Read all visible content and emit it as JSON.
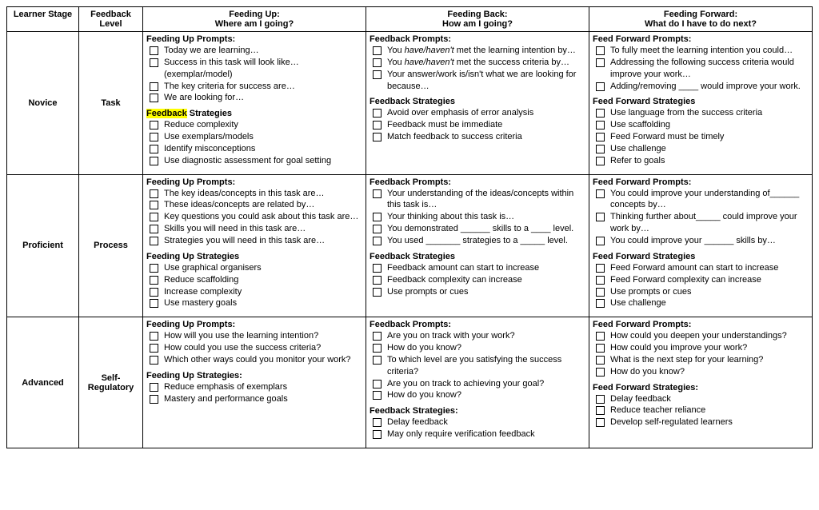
{
  "headers": {
    "stage": "Learner Stage",
    "level": "Feedback Level",
    "up_title": "Feeding Up:",
    "up_sub": "Where am I going?",
    "back_title": "Feeding Back:",
    "back_sub": "How am I going?",
    "fwd_title": "Feeding Forward:",
    "fwd_sub": "What do I have to do next?"
  },
  "rows": [
    {
      "stage": "Novice",
      "level": "Task",
      "up": {
        "prompts_title": "Feeding Up Prompts:",
        "prompts": [
          "Today we are learning…",
          "Success in this task will look like…(exemplar/model)",
          "The key criteria for success are…",
          "We are looking for…"
        ],
        "strat_title_hl": "Feedback",
        "strat_title_rest": " Strategies",
        "strategies": [
          "Reduce complexity",
          "Use exemplars/models",
          "Identify misconceptions",
          "Use diagnostic assessment for goal setting"
        ]
      },
      "back": {
        "prompts_title": "Feedback Prompts:",
        "prompts_html": [
          "You <em>have/haven't</em> met the learning intention by…",
          "You <em>have/haven't</em> met the success criteria by…",
          "Your answer/work is/isn't what we are looking for because…"
        ],
        "strat_title": "Feedback Strategies",
        "strategies": [
          "Avoid over emphasis of error analysis",
          "Feedback must be immediate",
          "Match feedback to success criteria"
        ]
      },
      "fwd": {
        "prompts_title": "Feed Forward Prompts:",
        "prompts": [
          "To fully meet the learning intention you could…",
          "Addressing the following success criteria would improve your work…",
          "Adding/removing ____ would improve your work."
        ],
        "strat_title": "Feed Forward Strategies",
        "strategies": [
          "Use language from the success criteria",
          "Use scaffolding",
          "Feed Forward must be timely",
          "Use challenge",
          "Refer to goals"
        ]
      }
    },
    {
      "stage": "Proficient",
      "level": "Process",
      "up": {
        "prompts_title": "Feeding Up Prompts:",
        "prompts": [
          "The key ideas/concepts in this task are…",
          "These ideas/concepts are related by…",
          "Key questions you could ask about this task are…",
          "Skills you will need in this task are…",
          "Strategies you will need in this task are…"
        ],
        "strat_title": "Feeding Up Strategies",
        "strategies": [
          "Use graphical organisers",
          "Reduce scaffolding",
          "Increase complexity",
          "Use mastery goals"
        ]
      },
      "back": {
        "prompts_title": "Feedback Prompts:",
        "prompts": [
          "Your understanding of the ideas/concepts within this task is…",
          "Your thinking about this task is…",
          "You demonstrated ______ skills to a ____ level.",
          "You used _______ strategies to a _____ level."
        ],
        "strat_title": "Feedback Strategies",
        "strategies": [
          "Feedback amount can start to increase",
          "Feedback complexity can increase",
          "Use prompts or cues"
        ]
      },
      "fwd": {
        "prompts_title": "Feed Forward Prompts:",
        "prompts": [
          "You could improve your understanding of______ concepts by…",
          "Thinking further about_____ could improve your work by…",
          "You could improve your ______ skills by…"
        ],
        "strat_title": "Feed Forward Strategies",
        "strategies": [
          "Feed Forward amount can start to increase",
          "Feed Forward complexity can increase",
          "Use prompts or cues",
          "Use challenge"
        ]
      }
    },
    {
      "stage": "Advanced",
      "level": "Self-Regulatory",
      "up": {
        "prompts_title": "Feeding Up Prompts:",
        "prompts": [
          "How will you use the learning intention?",
          "How could you use the success criteria?",
          "Which other ways could you monitor your work?"
        ],
        "strat_title": "Feeding Up Strategies:",
        "strategies": [
          "Reduce emphasis of exemplars",
          "Mastery and performance goals"
        ]
      },
      "back": {
        "prompts_title": "Feedback Prompts:",
        "prompts": [
          "Are you on track with your work?",
          "How do you know?",
          "To which level are you satisfying the success criteria?",
          "Are you on track to achieving your goal?",
          "How do you know?"
        ],
        "strat_title": "Feedback Strategies:",
        "strategies": [
          "Delay feedback",
          "May only require verification feedback"
        ]
      },
      "fwd": {
        "prompts_title": "Feed Forward Prompts:",
        "prompts": [
          "How could you deepen your understandings?",
          "How could you improve your work?",
          "What is the next step for your learning?",
          "How do you know?"
        ],
        "strat_title": "Feed Forward Strategies:",
        "strategies": [
          "Delay feedback",
          "Reduce teacher reliance",
          "Develop self-regulated learners"
        ]
      }
    }
  ]
}
